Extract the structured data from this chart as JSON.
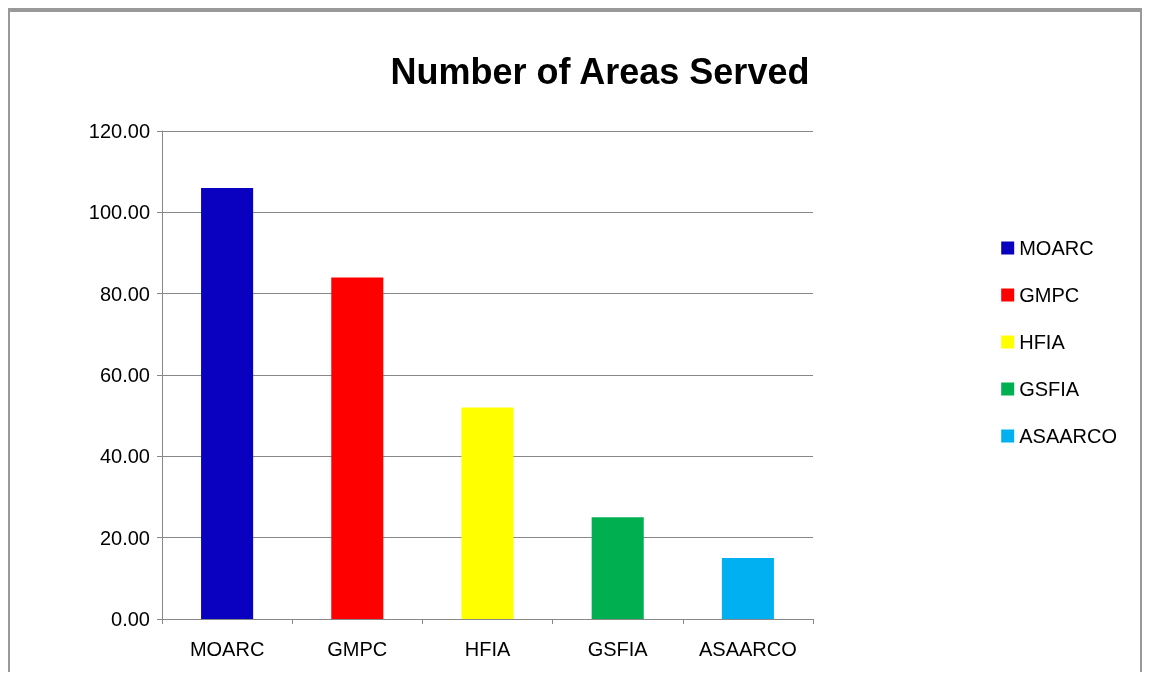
{
  "chart_data": {
    "type": "bar",
    "title": "Number of Areas Served",
    "categories": [
      "MOARC",
      "GMPC",
      "HFIA",
      "GSFIA",
      "ASAARCO"
    ],
    "series": [
      {
        "name": "MOARC",
        "color": "#0a00c0",
        "values": [
          106,
          null,
          null,
          null,
          null
        ]
      },
      {
        "name": "GMPC",
        "color": "#ff0000",
        "values": [
          null,
          84,
          null,
          null,
          null
        ]
      },
      {
        "name": "HFIA",
        "color": "#ffff00",
        "values": [
          null,
          null,
          52,
          null,
          null
        ]
      },
      {
        "name": "GSFIA",
        "color": "#00b050",
        "values": [
          null,
          null,
          null,
          25,
          null
        ]
      },
      {
        "name": "ASAARCO",
        "color": "#00b0f0",
        "values": [
          null,
          null,
          null,
          null,
          15
        ]
      }
    ],
    "ylim": [
      0,
      120
    ],
    "yticks": [
      {
        "value": 0,
        "label": "0.00"
      },
      {
        "value": 20,
        "label": "20.00"
      },
      {
        "value": 40,
        "label": "40.00"
      },
      {
        "value": 60,
        "label": "60.00"
      },
      {
        "value": 80,
        "label": "80.00"
      },
      {
        "value": 100,
        "label": "100.00"
      },
      {
        "value": 120,
        "label": "120.00"
      }
    ],
    "grid": "y",
    "legend": "right"
  }
}
